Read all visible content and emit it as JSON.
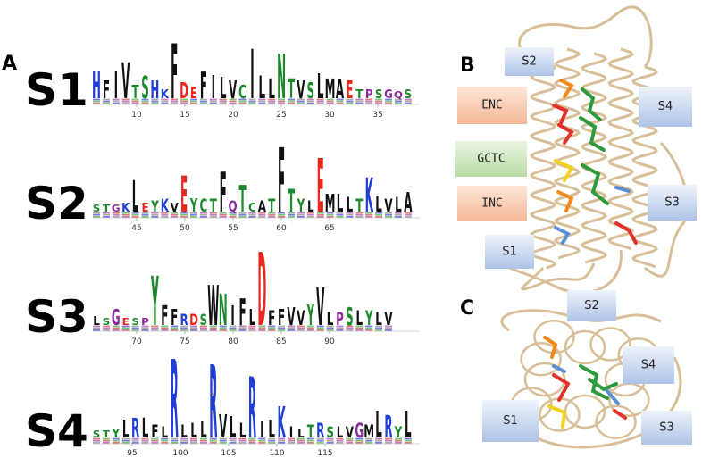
{
  "panels": {
    "a": {
      "label": "A",
      "logos": [
        {
          "label": "S1",
          "ticks": [
            10,
            15,
            20,
            25,
            30,
            35
          ],
          "columns": [
            "H",
            "F",
            "I",
            "V",
            "T",
            "S",
            "H",
            "K",
            "F",
            "D",
            "E",
            "F",
            "I",
            "L",
            "V",
            "C",
            "I",
            "L",
            "L",
            "N",
            "T",
            "V",
            "S",
            "L",
            "M",
            "A",
            "E",
            "T",
            "P",
            "S",
            "G",
            "Q",
            "S"
          ]
        },
        {
          "label": "S2",
          "ticks": [
            45,
            50,
            55,
            60,
            65
          ],
          "columns": [
            "S",
            "T",
            "G",
            "K",
            "L",
            "E",
            "Y",
            "K",
            "V",
            "E",
            "Y",
            "C",
            "T",
            "F",
            "Q",
            "T",
            "C",
            "A",
            "T",
            "F",
            "T",
            "Y",
            "L",
            "E",
            "M",
            "L",
            "L",
            "T",
            "K",
            "L",
            "V",
            "L",
            "A"
          ]
        },
        {
          "label": "S3",
          "ticks": [
            70,
            75,
            80,
            85,
            90
          ],
          "columns": [
            "L",
            "S",
            "G",
            "E",
            "S",
            "P",
            "Y",
            "F",
            "F",
            "R",
            "D",
            "S",
            "W",
            "N",
            "I",
            "F",
            "L",
            "D",
            "F",
            "F",
            "V",
            "V",
            "Y",
            "V",
            "L",
            "P",
            "S",
            "L",
            "Y",
            "L",
            "V"
          ]
        },
        {
          "label": "S4",
          "ticks": [
            95,
            100,
            105,
            110,
            115
          ],
          "columns": [
            "S",
            "T",
            "Y",
            "L",
            "R",
            "L",
            "F",
            "L",
            "R",
            "L",
            "L",
            "L",
            "R",
            "V",
            "L",
            "L",
            "R",
            "I",
            "L",
            "K",
            "I",
            "L",
            "T",
            "R",
            "S",
            "L",
            "V",
            "G",
            "M",
            "L",
            "R",
            "Y",
            "L"
          ]
        }
      ]
    },
    "b": {
      "label": "B",
      "boxes": [
        "S2",
        "S4",
        "ENC",
        "GCTC",
        "INC",
        "S3",
        "S1"
      ]
    },
    "c": {
      "label": "C",
      "boxes": [
        "S2",
        "S4",
        "S1",
        "S3"
      ]
    }
  }
}
